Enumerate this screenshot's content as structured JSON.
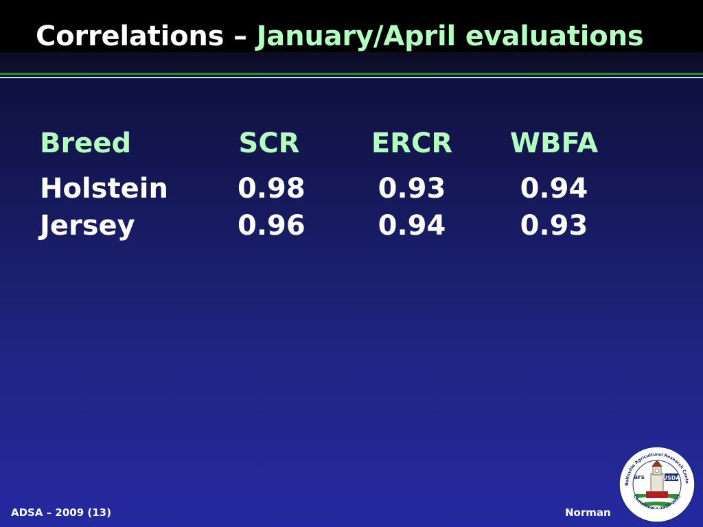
{
  "slide": {
    "title_prefix": "Correlations",
    "title_dash": " – ",
    "title_accent": "January/April evaluations"
  },
  "table": {
    "headers": [
      "Breed",
      "SCR",
      "ERCR",
      "WBFA"
    ],
    "rows": [
      [
        "Holstein",
        "0.98",
        "0.93",
        "0.94"
      ],
      [
        "Jersey",
        "0.96",
        "0.94",
        "0.93"
      ]
    ]
  },
  "footer": {
    "left": "ADSA – 2009 (13)",
    "right": "Norman"
  },
  "logo": {
    "ring_text_top": "Beltsville Agricultural Research Center",
    "ring_text_bottom": "Centennial • 1910-2010",
    "org_left": "ars",
    "org_right": "USDA"
  },
  "colors": {
    "accent_green": "#b3ffbf",
    "rule_green": "#2e8b3a",
    "background_top": "#0c0c2e",
    "background_bottom": "#2529a0"
  }
}
